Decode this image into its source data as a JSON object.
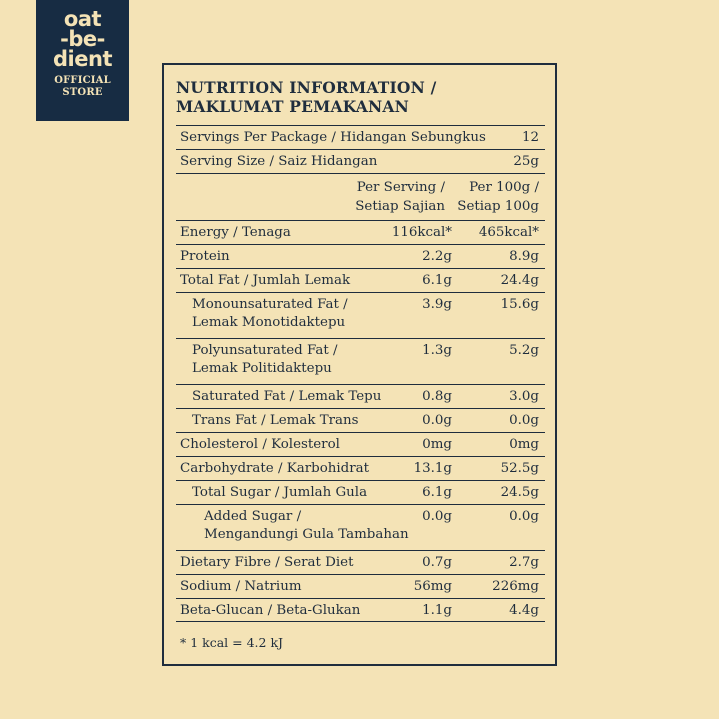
{
  "logo": {
    "line1": "oat",
    "line2": "-be-",
    "line3": "dient",
    "store_line1": "OFFICIAL",
    "store_line2": "STORE"
  },
  "panel": {
    "title_line1": "NUTRITION INFORMATION /",
    "title_line2": "MAKLUMAT PEMAKANAN",
    "servings": {
      "label": "Servings Per Package / Hidangan Sebungkus",
      "value": "12"
    },
    "serving_size": {
      "label": "Serving Size / Saiz Hidangan",
      "value": "25g"
    },
    "column_headers": {
      "per_serving_line1": "Per Serving /",
      "per_serving_line2": "Setiap Sajian",
      "per_100g_line1": "Per 100g /",
      "per_100g_line2": "Setiap 100g"
    },
    "nutrients": [
      {
        "label": "Energy / Tenaga",
        "per_serving": "116kcal*",
        "per_100g": "465kcal*"
      },
      {
        "label": "Protein",
        "per_serving": "2.2g",
        "per_100g": "8.9g"
      },
      {
        "label": "Total Fat / Jumlah Lemak",
        "per_serving": "6.1g",
        "per_100g": "24.4g"
      },
      {
        "label_line1": "Monounsaturated Fat /",
        "label_line2": "Lemak Monotidaktepu",
        "per_serving": "3.9g",
        "per_100g": "15.6g"
      },
      {
        "label_line1": "Polyunsaturated Fat /",
        "label_line2": "Lemak Politidaktepu",
        "per_serving": "1.3g",
        "per_100g": "5.2g"
      },
      {
        "label": "Saturated Fat / Lemak Tepu",
        "per_serving": "0.8g",
        "per_100g": "3.0g"
      },
      {
        "label": "Trans Fat / Lemak Trans",
        "per_serving": "0.0g",
        "per_100g": "0.0g"
      },
      {
        "label": "Cholesterol / Kolesterol",
        "per_serving": "0mg",
        "per_100g": "0mg"
      },
      {
        "label": "Carbohydrate / Karbohidrat",
        "per_serving": "13.1g",
        "per_100g": "52.5g"
      },
      {
        "label": "Total Sugar / Jumlah Gula",
        "per_serving": "6.1g",
        "per_100g": "24.5g"
      },
      {
        "label_line1": "Added Sugar /",
        "label_line2": "Mengandungi Gula Tambahan",
        "per_serving": "0.0g",
        "per_100g": "0.0g"
      },
      {
        "label": "Dietary Fibre / Serat Diet",
        "per_serving": "0.7g",
        "per_100g": "2.7g"
      },
      {
        "label": "Sodium / Natrium",
        "per_serving": "56mg",
        "per_100g": "226mg"
      },
      {
        "label": "Beta-Glucan / Beta-Glukan",
        "per_serving": "1.1g",
        "per_100g": "4.4g"
      }
    ],
    "footnote": "* 1 kcal = 4.2 kJ"
  },
  "colors": {
    "background": "#f4e3b6",
    "navy": "#172c43",
    "text": "#1f2d3d"
  }
}
